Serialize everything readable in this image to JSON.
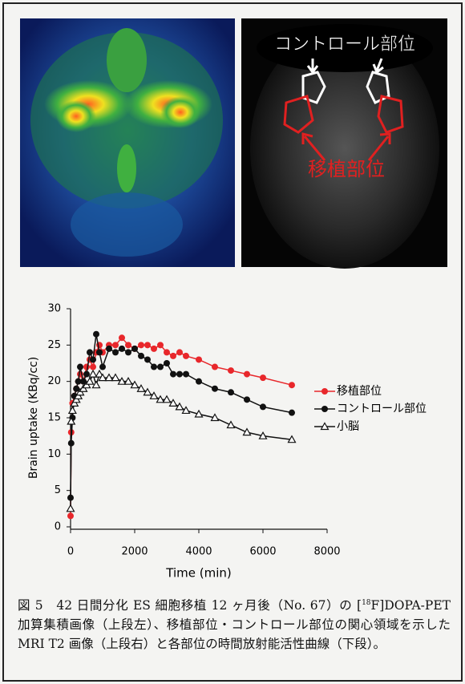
{
  "image_labels": {
    "control": "コントロール部位",
    "graft": "移植部位"
  },
  "chart_data": {
    "type": "line",
    "xlabel": "Time (min)",
    "ylabel": "Brain uptake (KBq/cc)",
    "x": [
      0,
      20,
      60,
      120,
      180,
      240,
      300,
      400,
      500,
      600,
      700,
      800,
      900,
      1000,
      1200,
      1400,
      1600,
      1800,
      2000,
      2200,
      2400,
      2600,
      2800,
      3000,
      3200,
      3400,
      3600,
      4000,
      4500,
      5000,
      5500,
      6000,
      6900
    ],
    "series": [
      {
        "name": "移植部位",
        "color": "#e8272b",
        "marker": "circle",
        "values": [
          1.5,
          13,
          17,
          18,
          19,
          20,
          21,
          20,
          22,
          23,
          22,
          24,
          25,
          24,
          25,
          25,
          26,
          25,
          24.5,
          25,
          25,
          24.5,
          25,
          24,
          23.5,
          24,
          23.5,
          23,
          22,
          21.5,
          21,
          20.5,
          19.5
        ]
      },
      {
        "name": "コントロール部位",
        "color": "#111111",
        "marker": "circle",
        "values": [
          4,
          11.5,
          15,
          18,
          19,
          20,
          22,
          20,
          21,
          24,
          23,
          26.5,
          24,
          22,
          24.5,
          24,
          24.5,
          24,
          24.5,
          23.5,
          23,
          22,
          22,
          22.5,
          21,
          21,
          21,
          20,
          19,
          18.5,
          17.5,
          16.5,
          15.7
        ]
      },
      {
        "name": "小脳",
        "color": "#111111",
        "marker": "triangle-open",
        "values": [
          2.5,
          14.5,
          16,
          17,
          17.5,
          18,
          18.5,
          19,
          19.5,
          20,
          21,
          19.5,
          21,
          20.5,
          20.5,
          20.5,
          20,
          20,
          19.5,
          19,
          18.5,
          18,
          17.5,
          17.5,
          17,
          16.5,
          16,
          15.5,
          15,
          14,
          13,
          12.5,
          12
        ]
      }
    ],
    "xlim": [
      0,
      8000
    ],
    "xticks": [
      0,
      2000,
      4000,
      6000,
      8000
    ],
    "ylim": [
      0,
      30
    ],
    "yticks": [
      0,
      5,
      10,
      15,
      20,
      25,
      30
    ]
  },
  "caption": {
    "before": "図 5　42 日間分化 ES 細胞移植 12 ヶ月後（No. 67）の [",
    "sup": "18",
    "after": "F]DOPA-PET 加算集積画像（上段左）、移植部位・コントロール部位の関心領域を示した MRI T2 画像（上段右）と各部位の時間放射能活性曲線（下段）。"
  }
}
